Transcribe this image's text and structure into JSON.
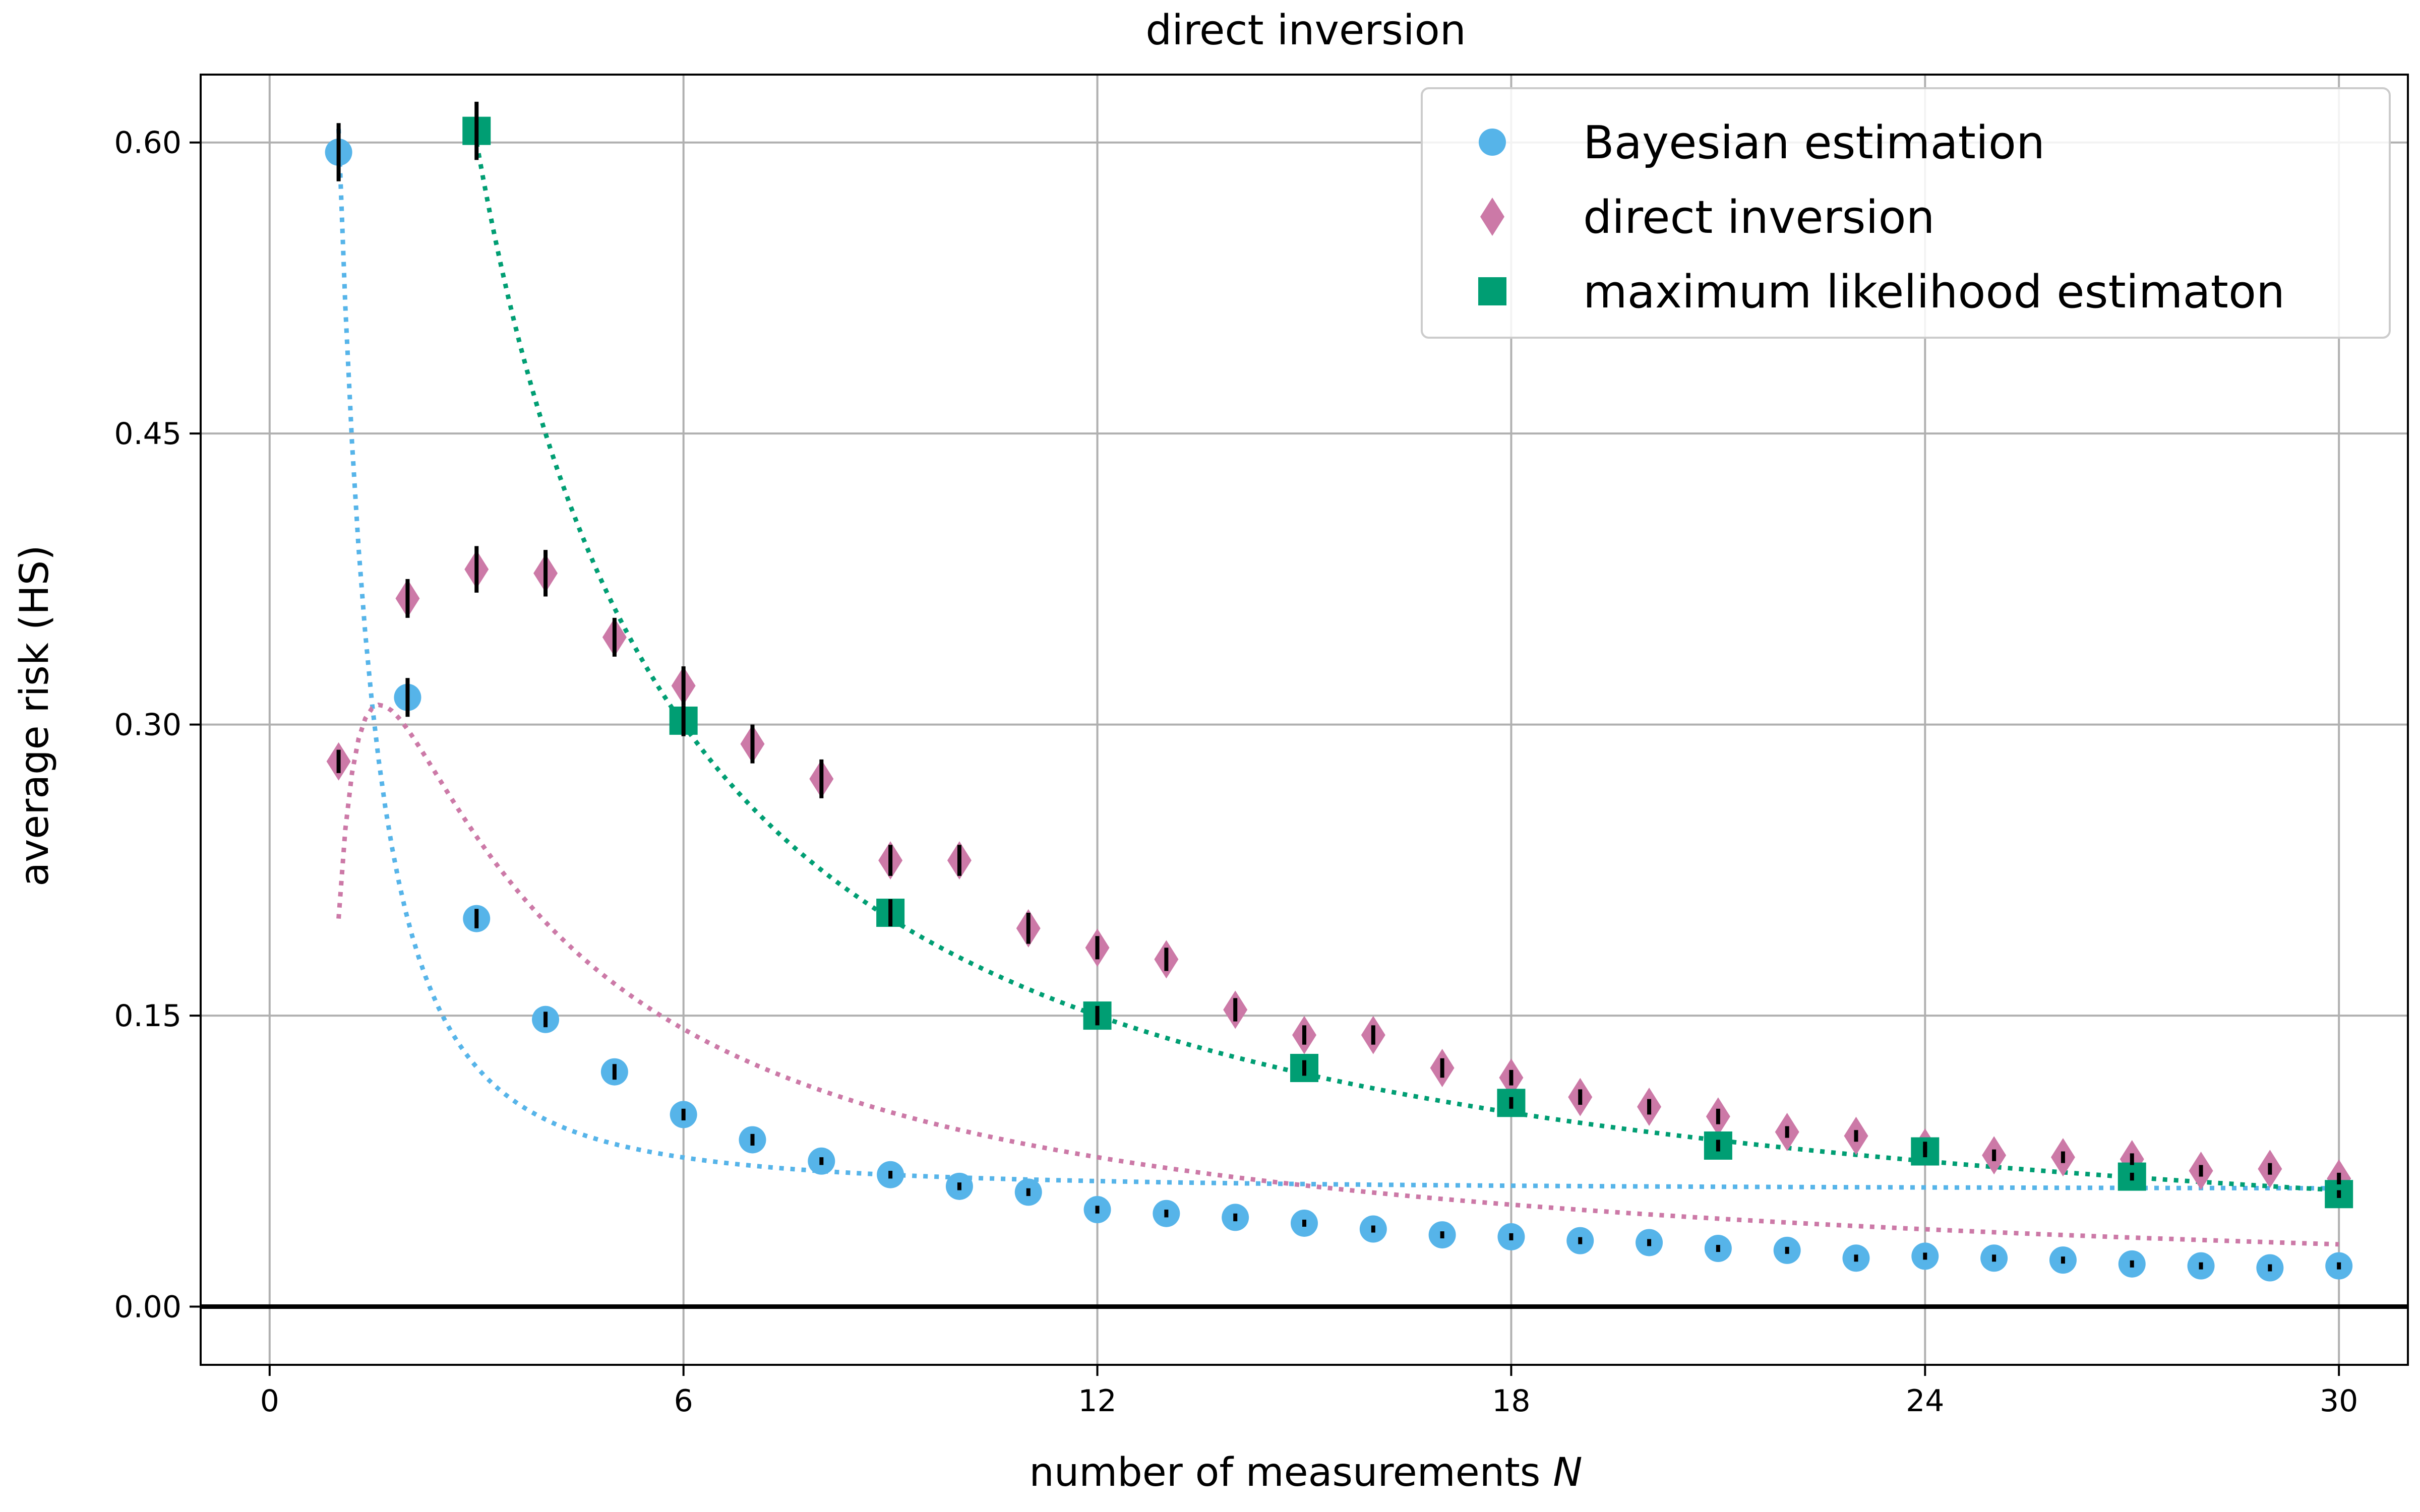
{
  "chart_data": {
    "type": "scatter",
    "title": "direct inversion",
    "xlabel": "number of measurements",
    "xlabel_var": "N",
    "ylabel": "average risk (HS)",
    "xlim": [
      -1,
      31
    ],
    "ylim": [
      -0.03,
      0.635
    ],
    "xticks": [
      0,
      6,
      12,
      18,
      24,
      30
    ],
    "yticks": [
      0.0,
      0.15,
      0.3,
      0.45,
      0.6
    ],
    "ytick_labels": [
      "0.00",
      "0.15",
      "0.30",
      "0.45",
      "0.60"
    ],
    "grid": true,
    "zero_line": true,
    "legend_position": "top-right",
    "series": [
      {
        "name": "Bayesian estimation",
        "marker": "circle",
        "color": "#56B4E9",
        "x": [
          1,
          2,
          3,
          4,
          5,
          6,
          7,
          8,
          9,
          10,
          11,
          12,
          13,
          14,
          15,
          16,
          17,
          18,
          19,
          20,
          21,
          22,
          23,
          24,
          25,
          26,
          27,
          28,
          29,
          30
        ],
        "y": [
          0.595,
          0.314,
          0.2,
          0.148,
          0.121,
          0.099,
          0.086,
          0.075,
          0.068,
          0.062,
          0.059,
          0.05,
          0.048,
          0.046,
          0.043,
          0.04,
          0.037,
          0.036,
          0.034,
          0.033,
          0.03,
          0.029,
          0.025,
          0.026,
          0.025,
          0.024,
          0.022,
          0.021,
          0.02,
          0.021
        ],
        "err": [
          0.015,
          0.01,
          0.005,
          0.004,
          0.004,
          0.003,
          0.003,
          0.002,
          0.002,
          0.002,
          0.002,
          0.002,
          0.002,
          0.002,
          0.001,
          0.001,
          0.001,
          0.001,
          0.001,
          0.001,
          0.001,
          0.001,
          0.001,
          0.001,
          0.001,
          0.001,
          0.001,
          0.001,
          0.001,
          0.001
        ],
        "fit": {
          "a": 0.06,
          "b": 0.535,
          "c": 0.012,
          "x_start": 1,
          "x_end": 30
        }
      },
      {
        "name": "direct inversion",
        "marker": "diamond",
        "color": "#CC79A7",
        "x": [
          1,
          2,
          3,
          4,
          5,
          6,
          7,
          8,
          9,
          10,
          11,
          12,
          13,
          14,
          15,
          16,
          17,
          18,
          19,
          20,
          21,
          22,
          23,
          24,
          25,
          26,
          27,
          28,
          29,
          30
        ],
        "y": [
          0.281,
          0.365,
          0.38,
          0.378,
          0.345,
          0.32,
          0.29,
          0.272,
          0.23,
          0.23,
          0.195,
          0.185,
          0.179,
          0.153,
          0.14,
          0.14,
          0.123,
          0.118,
          0.108,
          0.103,
          0.098,
          0.09,
          0.088,
          0.082,
          0.078,
          0.077,
          0.076,
          0.07,
          0.071,
          0.066
        ],
        "err": [
          0.006,
          0.01,
          0.012,
          0.012,
          0.01,
          0.01,
          0.01,
          0.01,
          0.008,
          0.008,
          0.008,
          0.006,
          0.006,
          0.006,
          0.005,
          0.005,
          0.005,
          0.004,
          0.004,
          0.004,
          0.004,
          0.003,
          0.003,
          0.003,
          0.003,
          0.003,
          0.003,
          0.003,
          0.003,
          0.003
        ],
        "fit": {
          "a": 0.99,
          "b": -0.79,
          "x_start": 1,
          "x_end": 30
        }
      },
      {
        "name": "maximum likelihood estimaton",
        "marker": "square",
        "color": "#009E73",
        "x": [
          3,
          6,
          9,
          12,
          15,
          18,
          21,
          24,
          27,
          30
        ],
        "y": [
          0.606,
          0.302,
          0.203,
          0.15,
          0.123,
          0.105,
          0.083,
          0.08,
          0.067,
          0.058
        ],
        "err": [
          0.015,
          0.008,
          0.007,
          0.005,
          0.004,
          0.003,
          0.003,
          0.003,
          0.002,
          0.002
        ],
        "fit": {
          "a": 1.8,
          "b": 0,
          "x_start": 3,
          "x_end": 30
        }
      }
    ]
  }
}
